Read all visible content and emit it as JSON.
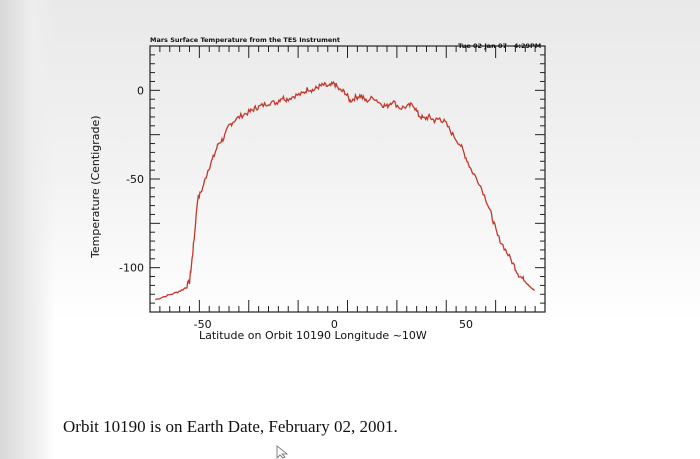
{
  "chart_data": {
    "type": "line",
    "title": "Mars Surface Temperature from the TES Instrument",
    "timestamp": "Tue 02 Jan 07   4:29PM",
    "xlabel": "Latitude on Orbit 10190 Longitude ~10W",
    "ylabel": "Temperature (Centigrade)",
    "xlim": [
      -70,
      80
    ],
    "ylim": [
      -125,
      25
    ],
    "x_ticks": [
      -50,
      0,
      50
    ],
    "x_tick_labels": [
      "-50",
      "0",
      "50"
    ],
    "y_ticks": [
      0,
      -50,
      -100
    ],
    "y_tick_labels": [
      "0",
      "-50",
      "-100"
    ],
    "grid": false,
    "series": [
      {
        "color": "#c0392b",
        "x": [
          -68,
          -64,
          -60,
          -57,
          -55,
          -54,
          -53,
          -52,
          -50,
          -48,
          -46,
          -44,
          -42,
          -40,
          -38,
          -35,
          -32,
          -30,
          -28,
          -25,
          -22,
          -20,
          -18,
          -15,
          -12,
          -10,
          -8,
          -6,
          -4,
          -2,
          0,
          2,
          4,
          6,
          8,
          10,
          12,
          15,
          18,
          20,
          22,
          25,
          28,
          30,
          32,
          34,
          36,
          38,
          40,
          42,
          45,
          48,
          50,
          52,
          55,
          58,
          60,
          62,
          65,
          68,
          70,
          72,
          74,
          76
        ],
        "y": [
          -118,
          -116,
          -114,
          -112,
          -108,
          -95,
          -80,
          -62,
          -55,
          -45,
          -38,
          -30,
          -27,
          -20,
          -17,
          -14,
          -12,
          -10,
          -9,
          -7,
          -7,
          -4,
          -5,
          -3,
          -2,
          1,
          0,
          2,
          3,
          2,
          4,
          0,
          -1,
          -6,
          -4,
          -3,
          -6,
          -4,
          -8,
          -9,
          -6,
          -10,
          -9,
          -8,
          -14,
          -16,
          -15,
          -17,
          -16,
          -18,
          -25,
          -31,
          -38,
          -45,
          -52,
          -63,
          -72,
          -82,
          -90,
          -98,
          -104,
          -107,
          -110,
          -113
        ]
      }
    ]
  },
  "caption": "Orbit 10190 is on Earth Date, February 02, 2001."
}
